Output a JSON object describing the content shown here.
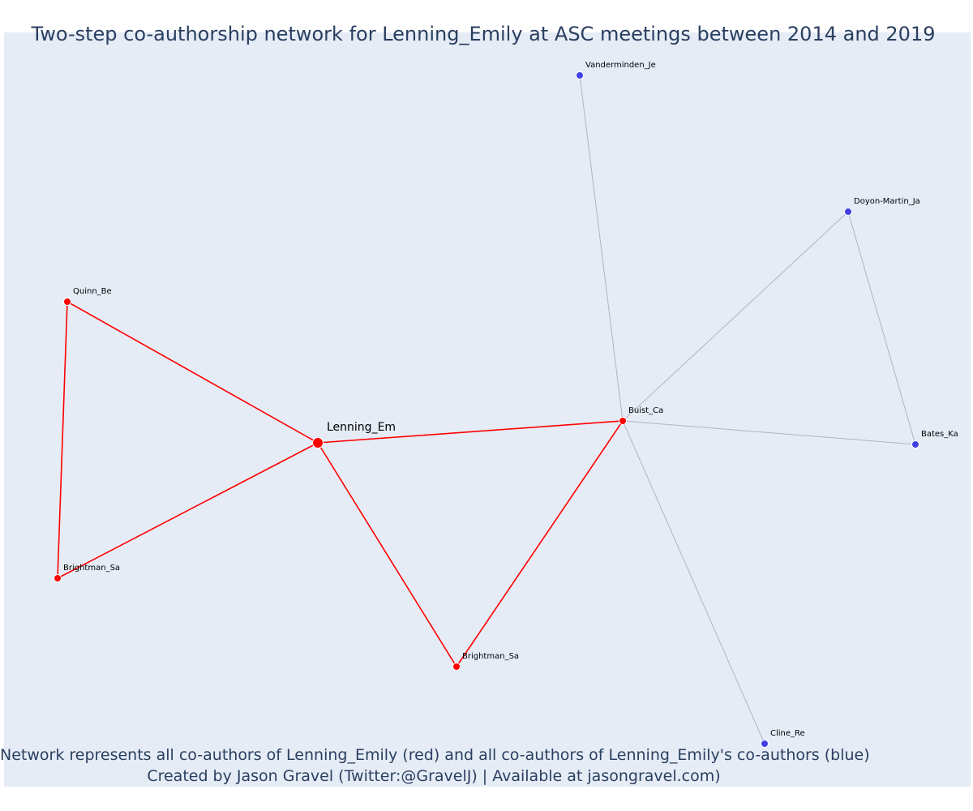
{
  "title": "Two-step co-authorship network for Lenning_Emily at ASC meetings between 2014 and 2019",
  "colors": {
    "background": "#e5ecf6",
    "first_step": "#ff0000",
    "second_step": "#4141e6",
    "second_step_edge": "#b0b4c2",
    "text": "#2a3f5f"
  },
  "nodes": [
    {
      "id": "lenning",
      "label": "Lenning_Em",
      "group": "center"
    },
    {
      "id": "quinn",
      "label": "Quinn_Be",
      "group": "coauthor"
    },
    {
      "id": "brightman1",
      "label": "Brightman_Sa",
      "group": "coauthor"
    },
    {
      "id": "brightman2",
      "label": "Brightman_Sa",
      "group": "coauthor"
    },
    {
      "id": "buist",
      "label": "Buist_Ca",
      "group": "coauthor"
    },
    {
      "id": "vanderminden",
      "label": "Vanderminden_Je",
      "group": "second"
    },
    {
      "id": "doyon",
      "label": "Doyon-Martin_Ja",
      "group": "second"
    },
    {
      "id": "bates",
      "label": "Bates_Ka",
      "group": "second"
    },
    {
      "id": "cline",
      "label": "Cline_Re",
      "group": "second"
    }
  ],
  "edges": [
    {
      "source": "lenning",
      "target": "quinn",
      "type": "first"
    },
    {
      "source": "lenning",
      "target": "brightman1",
      "type": "first"
    },
    {
      "source": "quinn",
      "target": "brightman1",
      "type": "first"
    },
    {
      "source": "lenning",
      "target": "brightman2",
      "type": "first"
    },
    {
      "source": "lenning",
      "target": "buist",
      "type": "first"
    },
    {
      "source": "brightman2",
      "target": "buist",
      "type": "first"
    },
    {
      "source": "buist",
      "target": "vanderminden",
      "type": "second"
    },
    {
      "source": "buist",
      "target": "doyon",
      "type": "second"
    },
    {
      "source": "buist",
      "target": "bates",
      "type": "second"
    },
    {
      "source": "doyon",
      "target": "bates",
      "type": "second"
    },
    {
      "source": "buist",
      "target": "cline",
      "type": "second"
    }
  ],
  "caption": {
    "line1": "Network represents all co-authors of Lenning_Emily (red) and all co-authors of Lenning_Emily's co-authors (blue)",
    "line2": "Created by Jason Gravel (Twitter:@GravelJ) | Available at jasongravel.com)"
  }
}
